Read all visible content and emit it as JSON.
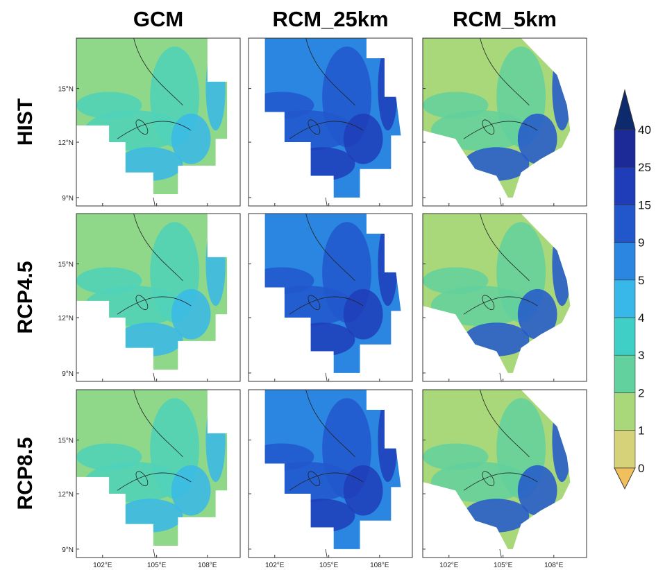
{
  "columns": [
    "GCM",
    "RCM_25km",
    "RCM_5km"
  ],
  "rows": [
    "HIST",
    "RCP4.5",
    "RCP8.5"
  ],
  "lat_ticks": [
    "15°N",
    "12°N",
    "9°N"
  ],
  "lon_ticks": [
    "102°E",
    "105°E",
    "108°E"
  ],
  "colorbar": {
    "levels": [
      0,
      1,
      2,
      3,
      4,
      5,
      9,
      15,
      25,
      40
    ],
    "colors": [
      "#f1c05c",
      "#d6d27a",
      "#a9d87a",
      "#63d19d",
      "#3fcfc6",
      "#38b8e8",
      "#2a86e0",
      "#2257cc",
      "#1f3db8",
      "#1c2a98",
      "#0d2a6c"
    ]
  }
}
